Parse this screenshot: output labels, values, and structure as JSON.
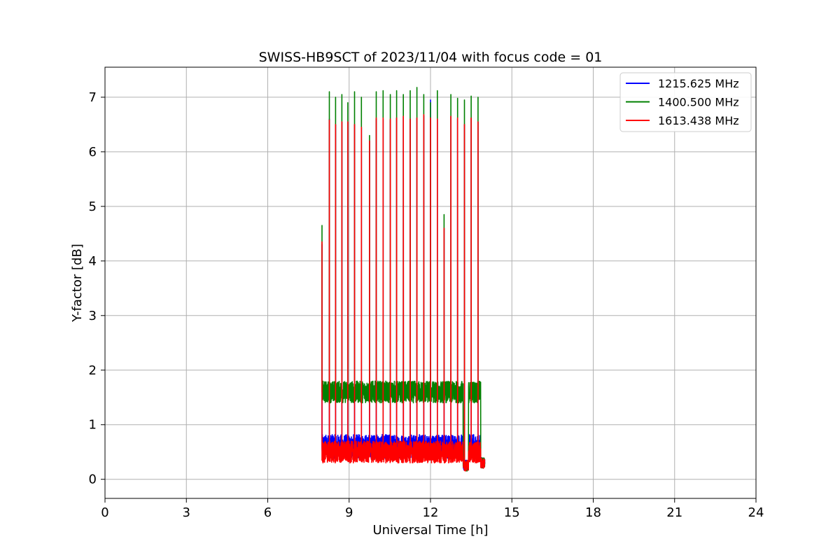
{
  "chart_data": {
    "type": "line",
    "title": "SWISS-HB9SCT of 2023/11/04 with focus code = 01",
    "xlabel": "Universal Time [h]",
    "ylabel": "Y-factor [dB]",
    "xlim": [
      0,
      24
    ],
    "ylim": [
      -0.35,
      7.55
    ],
    "xticks": [
      0,
      3,
      6,
      9,
      12,
      15,
      18,
      21,
      24
    ],
    "yticks": [
      0,
      1,
      2,
      3,
      4,
      5,
      6,
      7
    ],
    "grid": true,
    "legend_position": "top-right",
    "data_window": [
      8.0,
      14.0
    ],
    "series": [
      {
        "name": "1215.625 MHz",
        "color": "#0000ff",
        "baseline": 0.6,
        "spread": 0.22,
        "peaks": [
          [
            8.0,
            4.3
          ],
          [
            8.27,
            6.6
          ],
          [
            8.5,
            6.5
          ],
          [
            8.73,
            6.55
          ],
          [
            8.95,
            6.55
          ],
          [
            9.2,
            6.5
          ],
          [
            9.45,
            6.45
          ],
          [
            9.75,
            6.2
          ],
          [
            10.0,
            6.6
          ],
          [
            10.25,
            6.6
          ],
          [
            10.52,
            6.58
          ],
          [
            10.75,
            6.62
          ],
          [
            11.0,
            6.65
          ],
          [
            11.25,
            6.6
          ],
          [
            11.5,
            6.62
          ],
          [
            11.75,
            6.66
          ],
          [
            12.0,
            6.95
          ],
          [
            12.25,
            6.6
          ],
          [
            12.5,
            4.6
          ],
          [
            12.75,
            6.65
          ],
          [
            13.0,
            6.6
          ],
          [
            13.25,
            6.5
          ],
          [
            13.5,
            6.62
          ],
          [
            13.75,
            6.55
          ]
        ]
      },
      {
        "name": "1400.500 MHz",
        "color": "#008000",
        "baseline": 1.6,
        "spread": 0.2,
        "peaks": [
          [
            8.0,
            4.65
          ],
          [
            8.27,
            7.1
          ],
          [
            8.5,
            7.0
          ],
          [
            8.73,
            7.05
          ],
          [
            8.95,
            6.9
          ],
          [
            9.2,
            7.1
          ],
          [
            9.45,
            7.0
          ],
          [
            9.75,
            6.3
          ],
          [
            10.0,
            7.1
          ],
          [
            10.25,
            7.12
          ],
          [
            10.52,
            7.05
          ],
          [
            10.75,
            7.12
          ],
          [
            11.0,
            7.05
          ],
          [
            11.25,
            7.12
          ],
          [
            11.5,
            7.18
          ],
          [
            11.75,
            7.05
          ],
          [
            12.0,
            6.9
          ],
          [
            12.25,
            7.12
          ],
          [
            12.5,
            4.85
          ],
          [
            12.75,
            7.05
          ],
          [
            13.0,
            6.98
          ],
          [
            13.25,
            6.95
          ],
          [
            13.5,
            7.02
          ],
          [
            13.75,
            7.0
          ]
        ]
      },
      {
        "name": "1613.438 MHz",
        "color": "#ff0000",
        "baseline": 0.5,
        "spread": 0.2,
        "peaks": [
          [
            8.0,
            4.35
          ],
          [
            8.27,
            6.58
          ],
          [
            8.5,
            6.5
          ],
          [
            8.73,
            6.55
          ],
          [
            8.95,
            6.55
          ],
          [
            9.2,
            6.5
          ],
          [
            9.45,
            6.45
          ],
          [
            9.75,
            6.2
          ],
          [
            10.0,
            6.62
          ],
          [
            10.25,
            6.62
          ],
          [
            10.52,
            6.6
          ],
          [
            10.75,
            6.62
          ],
          [
            11.0,
            6.65
          ],
          [
            11.25,
            6.6
          ],
          [
            11.5,
            6.62
          ],
          [
            11.75,
            6.68
          ],
          [
            12.0,
            6.62
          ],
          [
            12.25,
            6.6
          ],
          [
            12.5,
            4.6
          ],
          [
            12.75,
            6.65
          ],
          [
            13.0,
            6.62
          ],
          [
            13.25,
            6.5
          ],
          [
            13.5,
            6.62
          ],
          [
            13.75,
            6.55
          ]
        ]
      }
    ]
  }
}
